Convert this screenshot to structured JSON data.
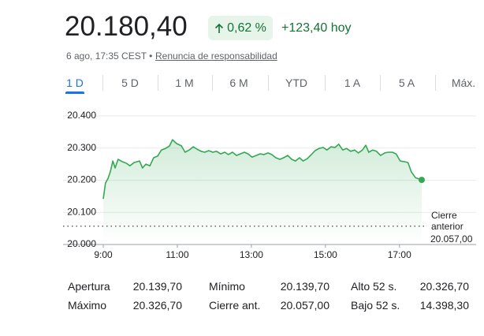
{
  "header": {
    "price": "20.180,40",
    "change_pct": "0,62 %",
    "change_abs": "+123,40 hoy",
    "date": "6 ago, 17:35 CEST •",
    "disclaimer": "Renuncia de responsabilidad"
  },
  "tabs": [
    "1 D",
    "5 D",
    "1 M",
    "6 M",
    "YTD",
    "1 A",
    "5 A",
    "Máx."
  ],
  "chart_data": {
    "type": "line",
    "x": [
      9.0,
      9.06,
      9.13,
      9.19,
      9.26,
      9.32,
      9.4,
      9.51,
      9.62,
      9.72,
      9.83,
      9.98,
      10.06,
      10.15,
      10.26,
      10.36,
      10.47,
      10.57,
      10.68,
      10.79,
      10.87,
      10.98,
      11.11,
      11.21,
      11.32,
      11.43,
      11.53,
      11.64,
      11.74,
      11.85,
      11.96,
      12.06,
      12.17,
      12.28,
      12.38,
      12.49,
      12.6,
      12.7,
      12.81,
      12.91,
      13.02,
      13.13,
      13.23,
      13.34,
      13.45,
      13.55,
      13.66,
      13.77,
      13.87,
      13.98,
      14.09,
      14.19,
      14.3,
      14.4,
      14.51,
      14.62,
      14.72,
      14.83,
      14.94,
      15.04,
      15.15,
      15.26,
      15.36,
      15.47,
      15.57,
      15.68,
      15.79,
      15.89,
      16.0,
      16.09,
      16.17,
      16.28,
      16.38,
      16.49,
      16.6,
      16.7,
      16.81,
      16.91,
      17.02,
      17.13,
      17.23,
      17.32,
      17.43,
      17.6
    ],
    "series": [
      {
        "color": "#34a853",
        "values": [
          20142,
          20191,
          20206,
          20226,
          20260,
          20238,
          20265,
          20258,
          20253,
          20245,
          20255,
          20260,
          20238,
          20250,
          20245,
          20270,
          20275,
          20294,
          20299,
          20307,
          20326,
          20314,
          20307,
          20287,
          20294,
          20304,
          20297,
          20290,
          20287,
          20292,
          20287,
          20290,
          20282,
          20287,
          20280,
          20287,
          20277,
          20282,
          20287,
          20282,
          20272,
          20277,
          20282,
          20280,
          20285,
          20280,
          20270,
          20265,
          20270,
          20277,
          20265,
          20260,
          20270,
          20260,
          20267,
          20280,
          20292,
          20299,
          20302,
          20294,
          20304,
          20302,
          20312,
          20294,
          20299,
          20290,
          20294,
          20285,
          20294,
          20309,
          20287,
          20294,
          20290,
          20277,
          20285,
          20287,
          20287,
          20282,
          20260,
          20258,
          20255,
          20226,
          20208,
          20201
        ]
      }
    ],
    "xlim": [
      9,
      17.75
    ],
    "ylim": [
      20000,
      20400
    ],
    "xticks": [
      {
        "value": 9,
        "label": "9:00"
      },
      {
        "value": 11,
        "label": "11:00"
      },
      {
        "value": 13,
        "label": "13:00"
      },
      {
        "value": 15,
        "label": "15:00"
      },
      {
        "value": 17,
        "label": "17:00"
      }
    ],
    "yticks": [
      {
        "value": 20000,
        "label": "20.000"
      },
      {
        "value": 20100,
        "label": "20.100"
      },
      {
        "value": 20200,
        "label": "20.200"
      },
      {
        "value": 20300,
        "label": "20.300"
      },
      {
        "value": 20400,
        "label": "20.400"
      }
    ],
    "grid": true,
    "previous_close": {
      "label": "Cierre anterior",
      "value": 20057,
      "value_label": "20.057,00"
    }
  },
  "stats": {
    "rows": [
      [
        {
          "label": "Apertura",
          "value": "20.139,70"
        },
        {
          "label": "Mínimo",
          "value": "20.139,70"
        },
        {
          "label": "Alto 52 s.",
          "value": "20.326,70"
        }
      ],
      [
        {
          "label": "Máximo",
          "value": "20.326,70"
        },
        {
          "label": "Cierre ant.",
          "value": "20.057,00"
        },
        {
          "label": "Bajo 52 s.",
          "value": "14.398,30"
        }
      ]
    ]
  }
}
